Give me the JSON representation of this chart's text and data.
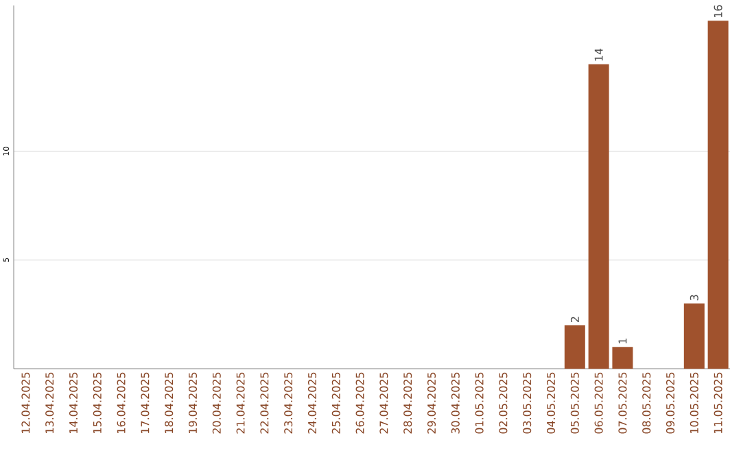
{
  "chart_data": {
    "type": "bar",
    "categories": [
      "12.04.2025",
      "13.04.2025",
      "14.04.2025",
      "15.04.2025",
      "16.04.2025",
      "17.04.2025",
      "18.04.2025",
      "19.04.2025",
      "20.04.2025",
      "21.04.2025",
      "22.04.2025",
      "23.04.2025",
      "24.04.2025",
      "25.04.2025",
      "26.04.2025",
      "27.04.2025",
      "28.04.2025",
      "29.04.2025",
      "30.04.2025",
      "01.05.2025",
      "02.05.2025",
      "03.05.2025",
      "04.05.2025",
      "05.05.2025",
      "06.05.2025",
      "07.05.2025",
      "08.05.2025",
      "09.05.2025",
      "10.05.2025",
      "11.05.2025"
    ],
    "values": [
      0,
      0,
      0,
      0,
      0,
      0,
      0,
      0,
      0,
      0,
      0,
      0,
      0,
      0,
      0,
      0,
      0,
      0,
      0,
      0,
      0,
      0,
      0,
      2,
      14,
      1,
      0,
      0,
      3,
      16
    ],
    "value_labels": [
      null,
      null,
      null,
      null,
      null,
      null,
      null,
      null,
      null,
      null,
      null,
      null,
      null,
      null,
      null,
      null,
      null,
      null,
      null,
      null,
      null,
      null,
      null,
      "2",
      "14",
      "1",
      null,
      null,
      "3",
      "16"
    ],
    "color": "#a0522d",
    "ylim": [
      0,
      16.7
    ],
    "yticks": [
      5,
      10
    ],
    "grid": "y"
  }
}
